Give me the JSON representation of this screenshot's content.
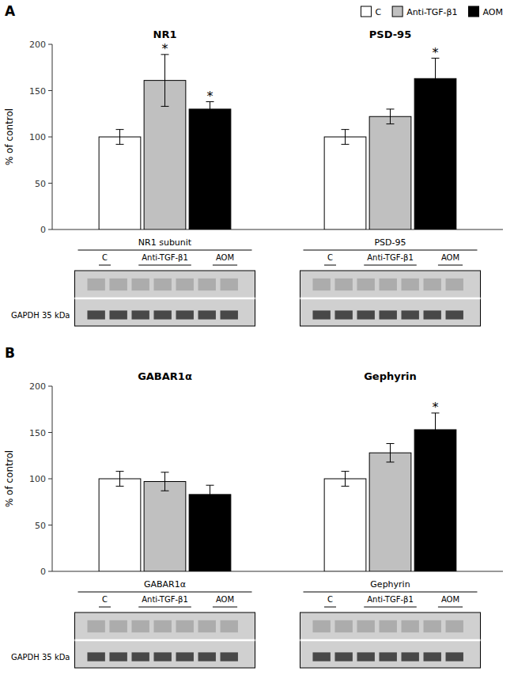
{
  "chart_data": [
    {
      "type": "bar",
      "title": "A",
      "categories": [
        "NR1",
        "PSD-95"
      ],
      "series": [
        {
          "name": "C",
          "color": "#ffffff",
          "values": [
            100,
            100
          ],
          "errors": [
            8,
            8
          ]
        },
        {
          "name": "Anti-TGF-β1",
          "color": "#c0c0c0",
          "values": [
            161,
            122
          ],
          "errors": [
            28,
            8
          ]
        },
        {
          "name": "AOM",
          "color": "#000000",
          "values": [
            130,
            163
          ],
          "errors": [
            8,
            22
          ]
        }
      ],
      "ylim": [
        0,
        200
      ],
      "yticks": [
        0,
        50,
        100,
        150,
        200
      ],
      "ylabel": "% of control",
      "grid": false,
      "legend": "upper right",
      "annotations": [
        {
          "text": "*",
          "series": 1,
          "category": 0
        },
        {
          "text": "*",
          "series": 2,
          "category": 0
        },
        {
          "text": "*",
          "series": 2,
          "category": 1
        }
      ],
      "blot": {
        "labels": [
          "NR1 subunit",
          "PSD-95"
        ],
        "loading_control": "GAPDH 35 kDa"
      }
    },
    {
      "type": "bar",
      "title": "B",
      "categories": [
        "GABAR1α",
        "Gephyrin"
      ],
      "series": [
        {
          "name": "C",
          "color": "#ffffff",
          "values": [
            100,
            100
          ],
          "errors": [
            8,
            8
          ]
        },
        {
          "name": "Anti-TGF-β1",
          "color": "#c0c0c0",
          "values": [
            97,
            128
          ],
          "errors": [
            10,
            10
          ]
        },
        {
          "name": "AOM",
          "color": "#000000",
          "values": [
            83,
            153
          ],
          "errors": [
            10,
            18
          ]
        }
      ],
      "ylim": [
        0,
        200
      ],
      "yticks": [
        0,
        50,
        100,
        150,
        200
      ],
      "ylabel": "% of control",
      "grid": false,
      "annotations": [
        {
          "text": "*",
          "series": 2,
          "category": 1
        }
      ],
      "blot": {
        "labels": [
          "GABAR1α",
          "Gephyrin"
        ],
        "loading_control": "GAPDH 35 kDa"
      }
    }
  ]
}
